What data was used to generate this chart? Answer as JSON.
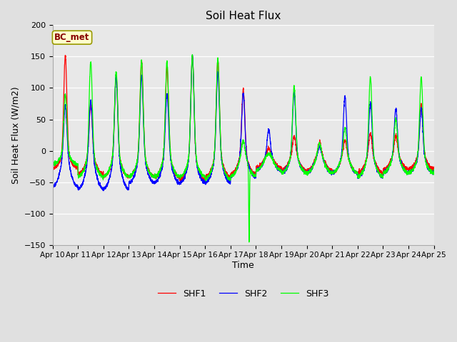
{
  "title": "Soil Heat Flux",
  "ylabel": "Soil Heat Flux (W/m2)",
  "xlabel": "Time",
  "ylim": [
    -150,
    200
  ],
  "yticks": [
    -150,
    -100,
    -50,
    0,
    50,
    100,
    150,
    200
  ],
  "outer_bg": "#e0e0e0",
  "plot_bg": "#e8e8e8",
  "annotation_text": "BC_met",
  "annotation_bg": "#ffffcc",
  "annotation_border": "#999900",
  "line_colors": [
    "red",
    "blue",
    "lime"
  ],
  "line_labels": [
    "SHF1",
    "SHF2",
    "SHF3"
  ],
  "num_days": 15,
  "xtick_labels": [
    "Apr 10",
    "Apr 11",
    "Apr 12",
    "Apr 13",
    "Apr 14",
    "Apr 15",
    "Apr 16",
    "Apr 17",
    "Apr 18",
    "Apr 19",
    "Apr 20",
    "Apr 21",
    "Apr 22",
    "Apr 23",
    "Apr 24",
    "Apr 25"
  ]
}
